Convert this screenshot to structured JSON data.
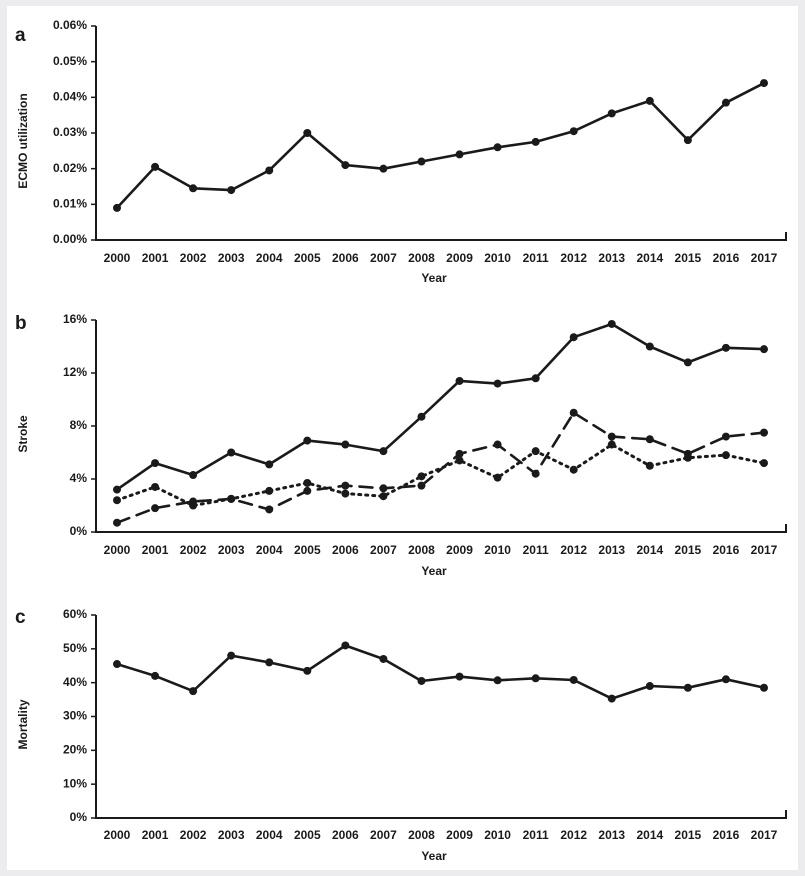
{
  "chart_data": [
    {
      "panel_label": "a",
      "type": "line",
      "title": "",
      "xlabel": "Year",
      "ylabel": "ECMO utilization",
      "x": [
        "2000",
        "2001",
        "2002",
        "2003",
        "2004",
        "2005",
        "2006",
        "2007",
        "2008",
        "2009",
        "2010",
        "2011",
        "2012",
        "2013",
        "2014",
        "2015",
        "2016",
        "2017"
      ],
      "ylim": [
        0,
        0.06
      ],
      "yticks": [
        "0.00%",
        "0.01%",
        "0.02%",
        "0.03%",
        "0.04%",
        "0.05%",
        "0.06%"
      ],
      "grid": false,
      "series": [
        {
          "style": "solid",
          "values": [
            0.009,
            0.0205,
            0.0145,
            0.014,
            0.0195,
            0.03,
            0.021,
            0.02,
            0.022,
            0.024,
            0.026,
            0.0275,
            0.0305,
            0.0355,
            0.039,
            0.028,
            0.0385,
            0.044
          ]
        }
      ]
    },
    {
      "panel_label": "b",
      "type": "line",
      "title": "",
      "xlabel": "Year",
      "ylabel": "Stroke",
      "x": [
        "2000",
        "2001",
        "2002",
        "2003",
        "2004",
        "2005",
        "2006",
        "2007",
        "2008",
        "2009",
        "2010",
        "2011",
        "2012",
        "2013",
        "2014",
        "2015",
        "2016",
        "2017"
      ],
      "ylim": [
        0,
        16
      ],
      "yticks": [
        "0%",
        "4%",
        "8%",
        "12%",
        "16%"
      ],
      "grid": false,
      "series": [
        {
          "style": "solid",
          "values": [
            3.2,
            5.2,
            4.3,
            6.0,
            5.1,
            6.9,
            6.6,
            6.1,
            8.7,
            11.4,
            11.2,
            11.6,
            14.7,
            15.7,
            14.0,
            12.8,
            13.9,
            13.8
          ]
        },
        {
          "style": "dashed",
          "values": [
            0.7,
            1.8,
            2.3,
            2.5,
            1.7,
            3.1,
            3.5,
            3.3,
            3.5,
            5.9,
            6.6,
            4.4,
            9.0,
            7.2,
            7.0,
            5.9,
            7.2,
            7.5
          ]
        },
        {
          "style": "dotted",
          "values": [
            2.4,
            3.4,
            2.0,
            2.5,
            3.1,
            3.7,
            2.9,
            2.7,
            4.2,
            5.4,
            4.1,
            6.1,
            4.7,
            6.6,
            5.0,
            5.6,
            5.8,
            5.2
          ]
        }
      ]
    },
    {
      "panel_label": "c",
      "type": "line",
      "title": "",
      "xlabel": "Year",
      "ylabel": "Mortality",
      "x": [
        "2000",
        "2001",
        "2002",
        "2003",
        "2004",
        "2005",
        "2006",
        "2007",
        "2008",
        "2009",
        "2010",
        "2011",
        "2012",
        "2013",
        "2014",
        "2015",
        "2016",
        "2017"
      ],
      "ylim": [
        0,
        60
      ],
      "yticks": [
        "0%",
        "10%",
        "20%",
        "30%",
        "40%",
        "50%",
        "60%"
      ],
      "grid": false,
      "series": [
        {
          "style": "solid",
          "values": [
            45.5,
            42.0,
            37.5,
            48.0,
            46.0,
            43.5,
            51.0,
            47.0,
            40.5,
            41.8,
            40.7,
            41.3,
            40.8,
            35.3,
            39.0,
            38.5,
            41.0,
            38.5
          ]
        }
      ]
    }
  ]
}
